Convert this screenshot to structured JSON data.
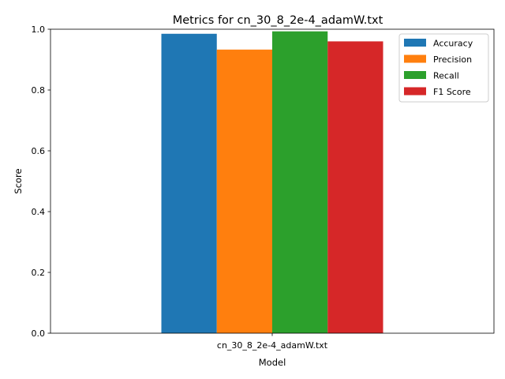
{
  "chart_data": {
    "type": "bar",
    "title": "Metrics for cn_30_8_2e-4_adamW.txt",
    "xlabel": "Model",
    "ylabel": "Score",
    "categories": [
      "cn_30_8_2e-4_adamW.txt"
    ],
    "series": [
      {
        "name": "Accuracy",
        "values": [
          0.985
        ],
        "color": "#1f77b4"
      },
      {
        "name": "Precision",
        "values": [
          0.933
        ],
        "color": "#ff7f0e"
      },
      {
        "name": "Recall",
        "values": [
          0.993
        ],
        "color": "#2ca02c"
      },
      {
        "name": "F1 Score",
        "values": [
          0.96
        ],
        "color": "#d62728"
      }
    ],
    "ylim": [
      0,
      1.0
    ],
    "yticks": [
      "0.0",
      "0.2",
      "0.4",
      "0.6",
      "0.8",
      "1.0"
    ],
    "grid": false,
    "legend_position": "top-right"
  }
}
